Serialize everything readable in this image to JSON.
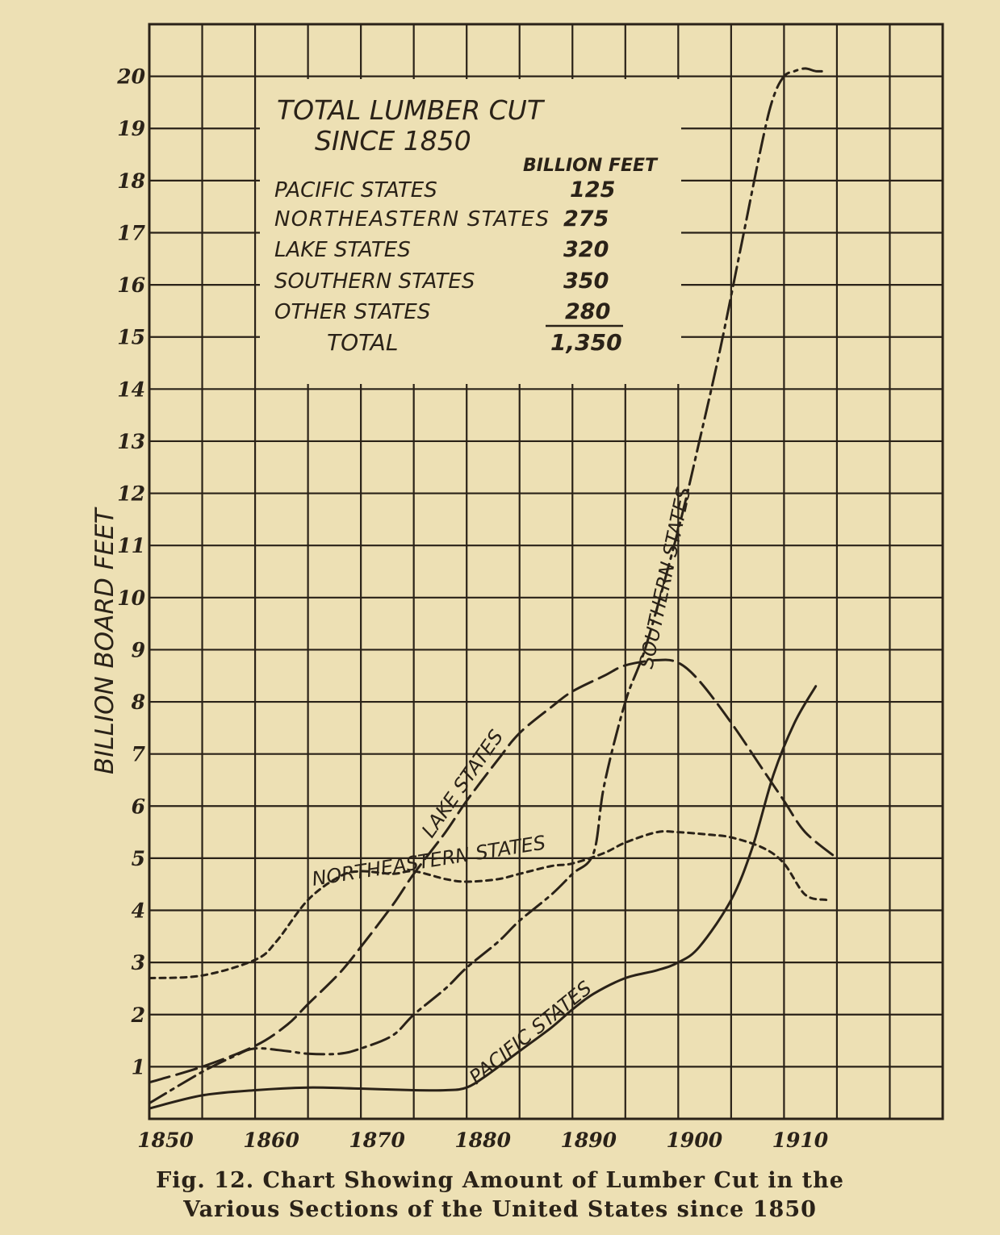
{
  "caption": {
    "line1": "Fig. 12.   Chart Showing Amount of Lumber Cut in the",
    "line2": "Various Sections of the United States since 1850"
  },
  "inset": {
    "title_line1": "TOTAL LUMBER CUT",
    "title_line2": "SINCE 1850",
    "unit_header": "BILLION FEET",
    "rows": [
      {
        "label": "PACIFIC STATES",
        "value": "125"
      },
      {
        "label": "NORTHEASTERN STATES",
        "value": "275"
      },
      {
        "label": "LAKE STATES",
        "value": "320"
      },
      {
        "label": "SOUTHERN STATES",
        "value": "350"
      },
      {
        "label": "OTHER STATES",
        "value": "280"
      }
    ],
    "total_label": "TOTAL",
    "total_value": "1,350"
  },
  "colors": {
    "ink": "#2a2218",
    "paper": "#ede0b4"
  },
  "chart_data": {
    "type": "line",
    "title": "",
    "xlabel": "",
    "ylabel": "BILLION BOARD FEET",
    "xlim": [
      1850,
      1925
    ],
    "ylim": [
      0,
      21
    ],
    "x_ticks": [
      1850,
      1860,
      1870,
      1880,
      1890,
      1900,
      1910
    ],
    "x_tick_labels": [
      "1850",
      "1860",
      "1870",
      "1880",
      "1890",
      "1900",
      "1910"
    ],
    "y_ticks": [
      1,
      2,
      3,
      4,
      5,
      6,
      7,
      8,
      9,
      10,
      11,
      12,
      13,
      14,
      15,
      16,
      17,
      18,
      19,
      20
    ],
    "grid": true,
    "series": [
      {
        "name": "PACIFIC STATES",
        "line_style": "solid",
        "x": [
          1850,
          1855,
          1860,
          1865,
          1870,
          1875,
          1878,
          1880,
          1882,
          1885,
          1888,
          1890,
          1892,
          1895,
          1898,
          1900,
          1902,
          1905,
          1907,
          1909,
          1911,
          1913
        ],
        "y": [
          0.2,
          0.45,
          0.55,
          0.6,
          0.58,
          0.55,
          0.55,
          0.6,
          0.85,
          1.3,
          1.75,
          2.1,
          2.4,
          2.7,
          2.85,
          3.0,
          3.3,
          4.2,
          5.2,
          6.6,
          7.6,
          8.3
        ]
      },
      {
        "name": "NORTHEASTERN STATES",
        "line_style": "short-dash",
        "x": [
          1850,
          1855,
          1860,
          1862,
          1865,
          1868,
          1870,
          1873,
          1875,
          1878,
          1880,
          1883,
          1885,
          1888,
          1890,
          1893,
          1895,
          1898,
          1900,
          1903,
          1905,
          1908,
          1910,
          1912,
          1914
        ],
        "y": [
          2.7,
          2.75,
          3.05,
          3.4,
          4.2,
          4.65,
          4.75,
          4.7,
          4.75,
          4.6,
          4.55,
          4.6,
          4.7,
          4.85,
          4.9,
          5.1,
          5.3,
          5.5,
          5.5,
          5.45,
          5.4,
          5.2,
          4.9,
          4.3,
          4.2
        ]
      },
      {
        "name": "LAKE STATES",
        "line_style": "long-dash",
        "x": [
          1850,
          1855,
          1860,
          1863,
          1865,
          1868,
          1870,
          1873,
          1875,
          1878,
          1880,
          1883,
          1885,
          1888,
          1890,
          1893,
          1895,
          1898,
          1900,
          1902,
          1905,
          1908,
          1910,
          1912,
          1915
        ],
        "y": [
          0.7,
          1.0,
          1.4,
          1.8,
          2.2,
          2.8,
          3.3,
          4.1,
          4.7,
          5.5,
          6.1,
          6.9,
          7.4,
          7.9,
          8.2,
          8.5,
          8.7,
          8.8,
          8.75,
          8.4,
          7.6,
          6.7,
          6.1,
          5.5,
          5.0
        ]
      },
      {
        "name": "SOUTHERN STATES",
        "line_style": "dash-dot",
        "x": [
          1850,
          1855,
          1858,
          1860,
          1863,
          1865,
          1868,
          1870,
          1873,
          1875,
          1878,
          1880,
          1883,
          1885,
          1888,
          1890,
          1892,
          1893,
          1895,
          1897,
          1900,
          1902,
          1904,
          1906,
          1908,
          1909,
          1910,
          1911,
          1912,
          1913,
          1914
        ],
        "y": [
          0.3,
          0.9,
          1.2,
          1.35,
          1.3,
          1.25,
          1.25,
          1.35,
          1.6,
          2.0,
          2.5,
          2.9,
          3.4,
          3.8,
          4.3,
          4.7,
          5.1,
          6.4,
          8.0,
          9.1,
          11.3,
          13.0,
          14.8,
          16.8,
          18.8,
          19.6,
          20.0,
          20.1,
          20.15,
          20.1,
          20.1
        ]
      }
    ],
    "annotations": [
      {
        "text": "PACIFIC STATES",
        "series": "PACIFIC STATES"
      },
      {
        "text": "NORTHEASTERN STATES",
        "series": "NORTHEASTERN STATES"
      },
      {
        "text": "LAKE STATES",
        "series": "LAKE STATES"
      },
      {
        "text": "SOUTHERN STATES",
        "series": "SOUTHERN STATES"
      }
    ]
  }
}
